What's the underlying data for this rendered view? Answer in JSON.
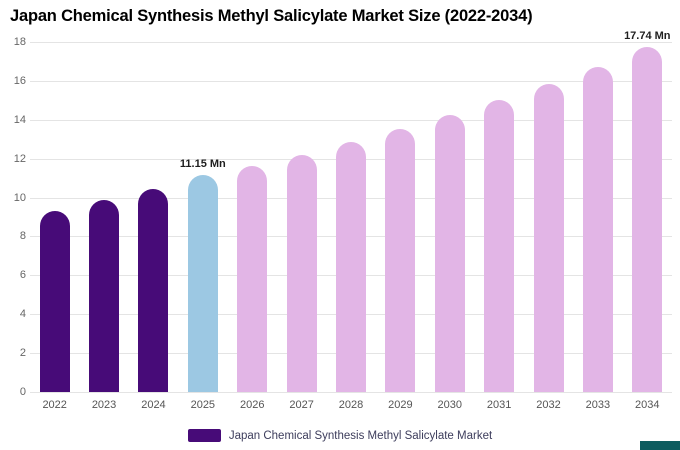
{
  "title": "Japan Chemical Synthesis Methyl Salicylate Market Size (2022-2034)",
  "legend": {
    "label": "Japan Chemical Synthesis Methyl Salicylate Market",
    "swatch_color": "#470B78"
  },
  "accent_color": "#0d5c5f",
  "chart_data": {
    "type": "bar",
    "title": "Japan Chemical Synthesis Methyl Salicylate Market Size (2022-2034)",
    "xlabel": "",
    "ylabel": "",
    "unit": "Mn",
    "categories": [
      "2022",
      "2023",
      "2024",
      "2025",
      "2026",
      "2027",
      "2028",
      "2029",
      "2030",
      "2031",
      "2032",
      "2033",
      "2034"
    ],
    "values": [
      9.3,
      9.9,
      10.45,
      11.15,
      11.6,
      12.2,
      12.85,
      13.55,
      14.25,
      15.0,
      15.85,
      16.7,
      17.74
    ],
    "bar_colors": [
      "#470B78",
      "#470B78",
      "#470B78",
      "#9CC8E3",
      "#E2B5E6",
      "#E2B5E6",
      "#E2B5E6",
      "#E2B5E6",
      "#E2B5E6",
      "#E2B5E6",
      "#E2B5E6",
      "#E2B5E6",
      "#E2B5E6"
    ],
    "color_roles": {
      "historical": "#470B78",
      "base_year": "#9CC8E3",
      "forecast": "#E2B5E6"
    },
    "annotations": [
      {
        "index": 3,
        "category": "2025",
        "text": "11.15 Mn"
      },
      {
        "index": 12,
        "category": "2034",
        "text": "17.74 Mn"
      }
    ],
    "ylim": [
      0,
      18
    ],
    "ytick_step": 2,
    "grid": true,
    "legend_position": "bottom"
  }
}
